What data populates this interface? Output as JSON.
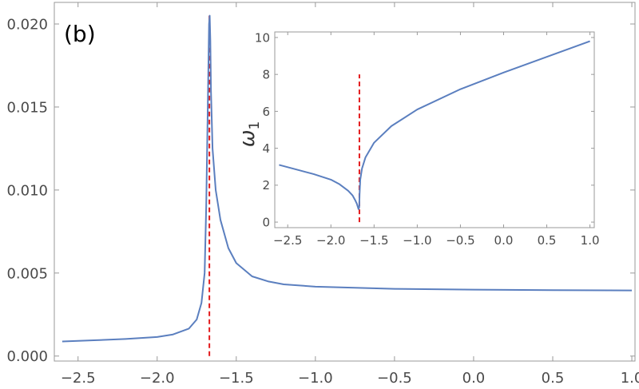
{
  "chart_data": [
    {
      "type": "line",
      "panel_label": "(b)",
      "xlabel": "",
      "ylabel": "",
      "xlim": [
        -2.65,
        1.02
      ],
      "ylim": [
        -0.0003,
        0.0213
      ],
      "xticks": [
        -2.5,
        -2.0,
        -1.5,
        -1.0,
        -0.5,
        0.0,
        0.5,
        1.0
      ],
      "xtick_labels": [
        "−2.5",
        "−2.0",
        "−1.5",
        "−1.0",
        "−0.5",
        "0.0",
        "0.5",
        "1.0"
      ],
      "yticks": [
        0.0,
        0.005,
        0.01,
        0.015,
        0.02
      ],
      "ytick_labels": [
        "0.000",
        "0.005",
        "0.010",
        "0.015",
        "0.020"
      ],
      "critical_x": -1.67,
      "critical_line_ylim": [
        0.0,
        0.0205
      ],
      "series": [
        {
          "color": "#5b7fbf",
          "points": [
            [
              -2.6,
              0.00088
            ],
            [
              -2.4,
              0.00095
            ],
            [
              -2.2,
              0.00103
            ],
            [
              -2.0,
              0.00115
            ],
            [
              -1.9,
              0.0013
            ],
            [
              -1.8,
              0.00165
            ],
            [
              -1.75,
              0.0022
            ],
            [
              -1.72,
              0.0032
            ],
            [
              -1.7,
              0.005
            ],
            [
              -1.69,
              0.009
            ],
            [
              -1.68,
              0.015
            ],
            [
              -1.672,
              0.02
            ],
            [
              -1.668,
              0.0205
            ],
            [
              -1.664,
              0.019
            ],
            [
              -1.66,
              0.016
            ],
            [
              -1.65,
              0.0125
            ],
            [
              -1.63,
              0.01
            ],
            [
              -1.6,
              0.0082
            ],
            [
              -1.55,
              0.0065
            ],
            [
              -1.5,
              0.0056
            ],
            [
              -1.4,
              0.0048
            ],
            [
              -1.3,
              0.0045
            ],
            [
              -1.2,
              0.00432
            ],
            [
              -1.0,
              0.00418
            ],
            [
              -0.5,
              0.00405
            ],
            [
              0.0,
              0.004
            ],
            [
              0.5,
              0.00397
            ],
            [
              1.0,
              0.00395
            ]
          ]
        }
      ]
    },
    {
      "type": "line",
      "role": "inset",
      "xlabel": "",
      "ylabel": "ω",
      "ylabel_sub": "1",
      "xlim": [
        -2.65,
        1.05
      ],
      "ylim": [
        -0.3,
        10.3
      ],
      "xticks": [
        -2.5,
        -2.0,
        -1.5,
        -1.0,
        -0.5,
        0.0,
        0.5,
        1.0
      ],
      "xtick_labels": [
        "−2.5",
        "−2.0",
        "−1.5",
        "−1.0",
        "−0.5",
        "0.0",
        "0.5",
        "1.0"
      ],
      "yticks": [
        0,
        2,
        4,
        6,
        8,
        10
      ],
      "ytick_labels": [
        "0",
        "2",
        "4",
        "6",
        "8",
        "10"
      ],
      "critical_x": -1.67,
      "critical_line_ylim": [
        0.0,
        8.0
      ],
      "series": [
        {
          "color": "#5b7fbf",
          "points": [
            [
              -2.6,
              3.1
            ],
            [
              -2.4,
              2.85
            ],
            [
              -2.2,
              2.6
            ],
            [
              -2.0,
              2.3
            ],
            [
              -1.9,
              2.05
            ],
            [
              -1.8,
              1.7
            ],
            [
              -1.75,
              1.45
            ],
            [
              -1.72,
              1.2
            ],
            [
              -1.7,
              1.0
            ],
            [
              -1.68,
              0.7
            ],
            [
              -1.672,
              0.8
            ],
            [
              -1.668,
              1.5
            ],
            [
              -1.66,
              2.3
            ],
            [
              -1.64,
              2.9
            ],
            [
              -1.6,
              3.5
            ],
            [
              -1.5,
              4.3
            ],
            [
              -1.3,
              5.2
            ],
            [
              -1.0,
              6.1
            ],
            [
              -0.5,
              7.2
            ],
            [
              0.0,
              8.1
            ],
            [
              0.5,
              8.95
            ],
            [
              1.0,
              9.8
            ]
          ]
        }
      ]
    }
  ]
}
